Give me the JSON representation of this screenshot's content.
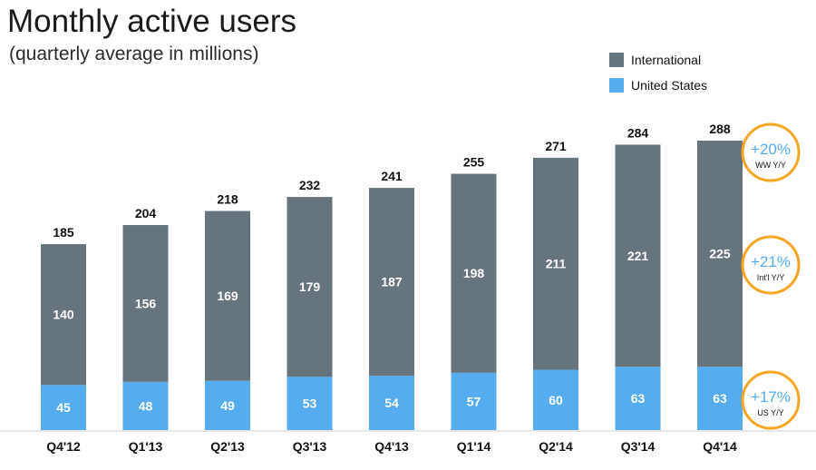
{
  "chart_data": {
    "type": "bar",
    "stacked": true,
    "title": "Monthly active users",
    "subtitle": "(quarterly average in millions)",
    "categories": [
      "Q4'12",
      "Q1'13",
      "Q2'13",
      "Q3'13",
      "Q4'13",
      "Q1'14",
      "Q2'14",
      "Q3'14",
      "Q4'14"
    ],
    "series": [
      {
        "name": "United States",
        "color": "#55acee",
        "values": [
          45,
          48,
          49,
          53,
          54,
          57,
          60,
          63,
          63
        ]
      },
      {
        "name": "International",
        "color": "#66747d",
        "values": [
          140,
          156,
          169,
          179,
          187,
          198,
          211,
          221,
          225
        ]
      }
    ],
    "totals": [
      185,
      204,
      218,
      232,
      241,
      255,
      271,
      284,
      288
    ],
    "ylim": [
      0,
      300
    ],
    "grid": false,
    "legend_position": "top-right",
    "annotations": [
      {
        "value": "+20%",
        "label": "WW Y/Y",
        "applies_to": "total"
      },
      {
        "value": "+21%",
        "label": "Int'l Y/Y",
        "applies_to": "International"
      },
      {
        "value": "+17%",
        "label": "US Y/Y",
        "applies_to": "United States"
      }
    ]
  },
  "colors": {
    "badge_ring": "#f5a623",
    "badge_text": "#55acee",
    "text": "#111111"
  }
}
